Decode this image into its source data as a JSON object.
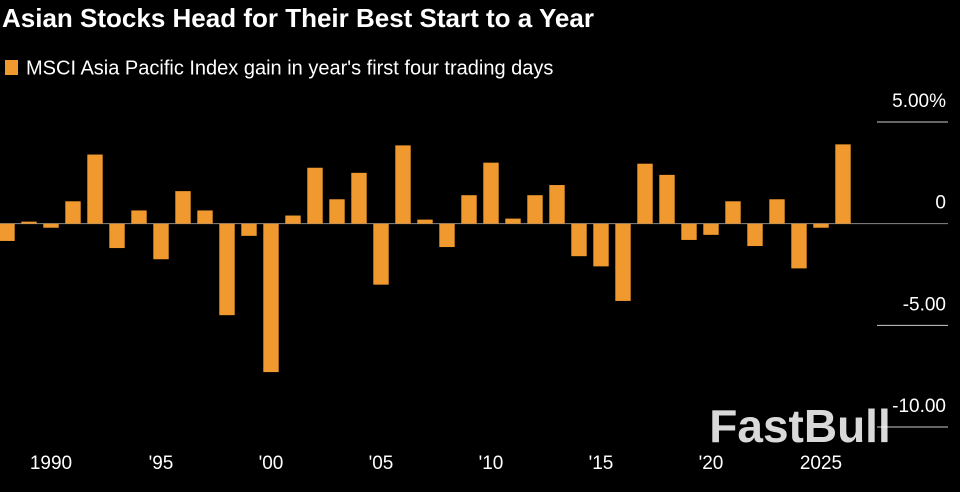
{
  "chart_data": {
    "type": "bar",
    "title": "Asian Stocks Head for Their Best Start to a Year",
    "series": [
      {
        "name": "MSCI Asia Pacific Index gain in year's first four trading days",
        "color": "#f0992e",
        "values": [
          -0.85,
          0.1,
          -0.2,
          1.1,
          3.4,
          -1.2,
          0.65,
          -1.75,
          1.6,
          0.65,
          -4.5,
          -0.6,
          -7.3,
          0.4,
          2.75,
          1.2,
          2.5,
          -3.0,
          3.85,
          0.2,
          -1.15,
          1.4,
          3.0,
          0.25,
          1.4,
          1.9,
          -1.6,
          -2.1,
          -3.8,
          2.95,
          2.4,
          -0.8,
          -0.55,
          1.1,
          -1.1,
          1.2,
          -2.2,
          -0.2,
          3.9
        ]
      }
    ],
    "x": [
      1988,
      1989,
      1990,
      1991,
      1992,
      1993,
      1994,
      1995,
      1996,
      1997,
      1998,
      1999,
      2000,
      2001,
      2002,
      2003,
      2004,
      2005,
      2006,
      2007,
      2008,
      2009,
      2010,
      2011,
      2012,
      2013,
      2014,
      2015,
      2016,
      2017,
      2018,
      2019,
      2020,
      2021,
      2022,
      2023,
      2024,
      2025,
      2026
    ],
    "xlim": [
      1987.5,
      2026.5
    ],
    "xticks": [
      1990,
      {
        "value": 1995,
        "label": "'95"
      },
      {
        "value": 2000,
        "label": "'00"
      },
      {
        "value": 2005,
        "label": "'05"
      },
      {
        "value": 2010,
        "label": "'10"
      },
      {
        "value": 2015,
        "label": "'15"
      },
      {
        "value": 2020,
        "label": "'20"
      },
      2025
    ],
    "ylim": [
      -10,
      5
    ],
    "yticks": [
      {
        "value": 5,
        "label": "5.00%"
      },
      0,
      {
        "value": -5,
        "label": "-5.00"
      },
      {
        "value": -10,
        "label": "-10.00"
      }
    ],
    "legend": "top-left",
    "watermark": "FastBull"
  }
}
